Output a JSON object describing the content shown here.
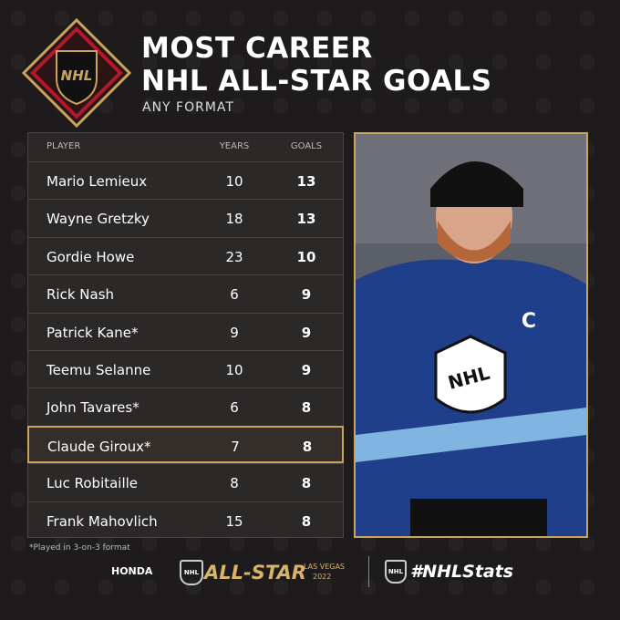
{
  "header": {
    "logo": "NHL",
    "title_lines": [
      "MOST CAREER",
      "NHL ALL-STAR GOALS"
    ],
    "subtitle": "ANY FORMAT"
  },
  "table": {
    "columns": [
      "PLAYER",
      "YEARS",
      "GOALS"
    ],
    "rows": [
      [
        "Mario Lemieux",
        10,
        13
      ],
      [
        "Wayne Gretzky",
        18,
        13
      ],
      [
        "Gordie Howe",
        23,
        10
      ],
      [
        "Rick Nash",
        6,
        9
      ],
      [
        "Patrick Kane*",
        9,
        9
      ],
      [
        "Teemu Selanne",
        10,
        9
      ],
      [
        "John Tavares*",
        6,
        8
      ],
      [
        "Claude Giroux*",
        7,
        8
      ],
      [
        "Luc Robitaille",
        8,
        8
      ],
      [
        "Frank Mahovlich",
        15,
        8
      ]
    ],
    "highlighted_row": 7
  },
  "photo": {
    "jersey_logo": "NHL",
    "captain_mark": "C"
  },
  "footnote": "*Played in 3-on-3 format",
  "footer": {
    "sponsor": "HONDA",
    "event_logo": "NHL",
    "event": "ALL-STAR",
    "location": "LAS VEGAS",
    "year": "2022",
    "stats_logo": "NHL",
    "hashtag": "#NHLStats"
  }
}
